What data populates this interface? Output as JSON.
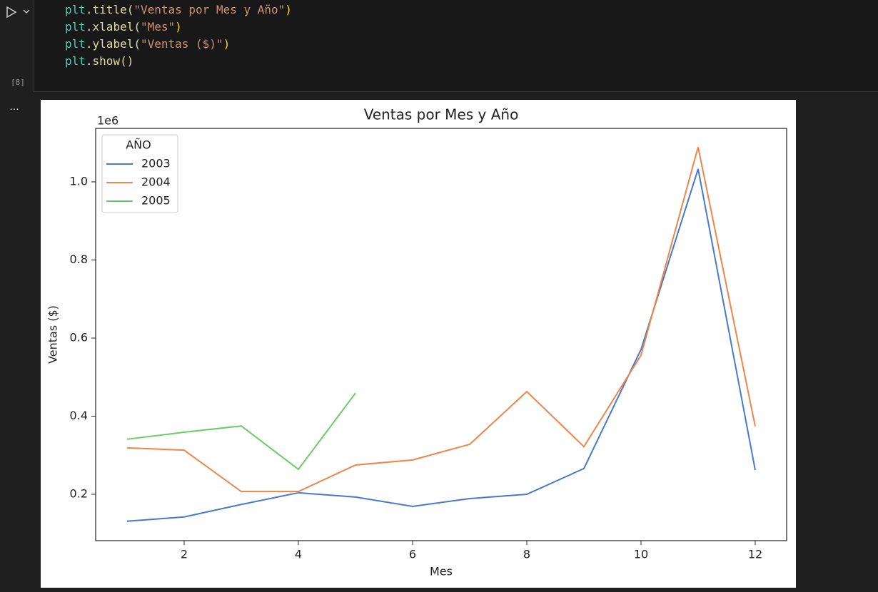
{
  "cell": {
    "execution_count": "[8]",
    "output_marker": "...",
    "code_lines": [
      [
        "plt",
        ".title(",
        "\"Ventas por Mes y Año\"",
        ")"
      ],
      [
        "plt",
        ".xlabel(",
        "\"Mes\"",
        ")"
      ],
      [
        "plt",
        ".ylabel(",
        "\"Ventas ($)\"",
        ")"
      ],
      [
        "plt",
        ".show()"
      ]
    ]
  },
  "chart_data": {
    "type": "line",
    "title": "Ventas por Mes y Año",
    "xlabel": "Mes",
    "ylabel": "Ventas ($)",
    "y_offset_label": "1e6",
    "legend_title": "AÑO",
    "legend": "upper left",
    "grid": false,
    "x": [
      1,
      2,
      3,
      4,
      5,
      6,
      7,
      8,
      9,
      10,
      11,
      12
    ],
    "series": [
      {
        "name": "2003",
        "color": "#4878d0",
        "values": [
          0.131,
          0.142,
          0.174,
          0.204,
          0.193,
          0.169,
          0.189,
          0.2,
          0.266,
          0.571,
          1.033,
          0.262
        ]
      },
      {
        "name": "2004",
        "color": "#ee854a",
        "values": [
          0.319,
          0.313,
          0.207,
          0.207,
          0.275,
          0.288,
          0.328,
          0.463,
          0.322,
          0.556,
          1.089,
          0.374
        ]
      },
      {
        "name": "2005",
        "color": "#6acc64",
        "values": [
          0.341,
          0.359,
          0.375,
          0.264,
          0.459,
          null,
          null,
          null,
          null,
          null,
          null,
          null
        ]
      }
    ],
    "xlim": [
      0.45,
      12.55
    ],
    "xticks": [
      2,
      4,
      6,
      8,
      10,
      12
    ],
    "ylim": [
      0.0813,
      1.137
    ],
    "yticks": [
      0.2,
      0.4,
      0.6,
      0.8,
      {
        "value": 1,
        "label": "1.0"
      }
    ]
  }
}
